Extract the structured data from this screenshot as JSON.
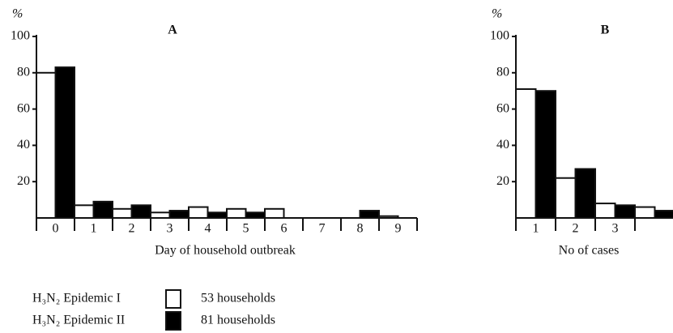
{
  "chart_data": [
    {
      "type": "bar",
      "title": "A",
      "ylabel": "%",
      "xlabel": "Day of household outbreak",
      "categories": [
        "0",
        "1",
        "2",
        "3",
        "4",
        "5",
        "6",
        "7",
        "8",
        "9"
      ],
      "series": [
        {
          "name": "H₃N₂ Epidemic I",
          "households": "53 households",
          "color": "#ffffff",
          "values": [
            80,
            7,
            5,
            3,
            6,
            5,
            5,
            0,
            0,
            1
          ]
        },
        {
          "name": "H₃N₂ Epidemic II",
          "households": "81 households",
          "color": "#000000",
          "values": [
            83,
            9,
            7,
            4,
            3,
            3,
            0,
            0,
            4,
            0
          ]
        }
      ],
      "ylim": [
        0,
        100
      ],
      "yticks": [
        20,
        40,
        60,
        80,
        100
      ],
      "grid": false
    },
    {
      "type": "bar",
      "title": "B",
      "ylabel": "%",
      "xlabel": "No of cases",
      "categories": [
        "1",
        "2",
        "3",
        null
      ],
      "series": [
        {
          "name": "H₃N₂ Epidemic I",
          "color": "#ffffff",
          "values": [
            71,
            22,
            8,
            6
          ]
        },
        {
          "name": "H₃N₂ Epidemic II",
          "color": "#000000",
          "values": [
            70,
            27,
            7,
            4
          ]
        }
      ],
      "ylim": [
        0,
        100
      ],
      "yticks": [
        20,
        40,
        60,
        80,
        100
      ],
      "grid": false
    }
  ]
}
